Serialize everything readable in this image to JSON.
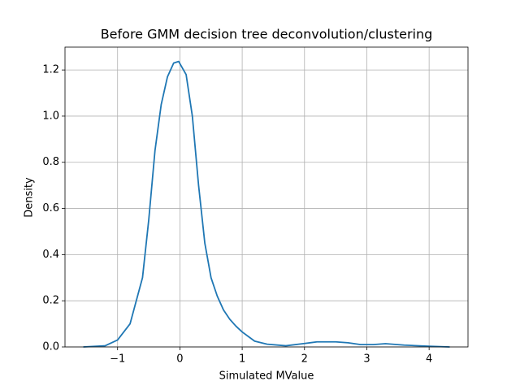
{
  "chart_data": {
    "type": "line",
    "title": "Before GMM decision tree deconvolution/clustering",
    "x_label": "Simulated MValue",
    "y_label": "Density",
    "x": [
      -1.55,
      -1.2,
      -1.0,
      -0.8,
      -0.6,
      -0.5,
      -0.4,
      -0.3,
      -0.2,
      -0.1,
      -0.02,
      0.1,
      0.2,
      0.3,
      0.4,
      0.5,
      0.6,
      0.7,
      0.8,
      0.9,
      1.0,
      1.1,
      1.2,
      1.4,
      1.7,
      2.0,
      2.2,
      2.5,
      2.7,
      2.9,
      3.1,
      3.3,
      3.6,
      4.0,
      4.33
    ],
    "series": [
      {
        "name": "density",
        "color": "#1f77b4",
        "values": [
          0,
          0.005,
          0.03,
          0.1,
          0.3,
          0.55,
          0.85,
          1.05,
          1.17,
          1.23,
          1.237,
          1.18,
          1.0,
          0.7,
          0.45,
          0.3,
          0.22,
          0.16,
          0.12,
          0.09,
          0.065,
          0.045,
          0.025,
          0.012,
          0.005,
          0.015,
          0.022,
          0.022,
          0.018,
          0.01,
          0.01,
          0.014,
          0.008,
          0.003,
          0
        ]
      }
    ],
    "xlim": [
      -1.844,
      4.624
    ],
    "ylim": [
      0,
      1.299
    ],
    "xticks": [
      {
        "value": -1,
        "label": "−1"
      },
      0,
      1,
      2,
      3,
      4
    ],
    "yticks": [
      {
        "value": 0,
        "label": "0.0"
      },
      0.2,
      0.4,
      0.6,
      0.8,
      {
        "value": 1,
        "label": "1.0"
      },
      1.2
    ],
    "grid": true
  }
}
